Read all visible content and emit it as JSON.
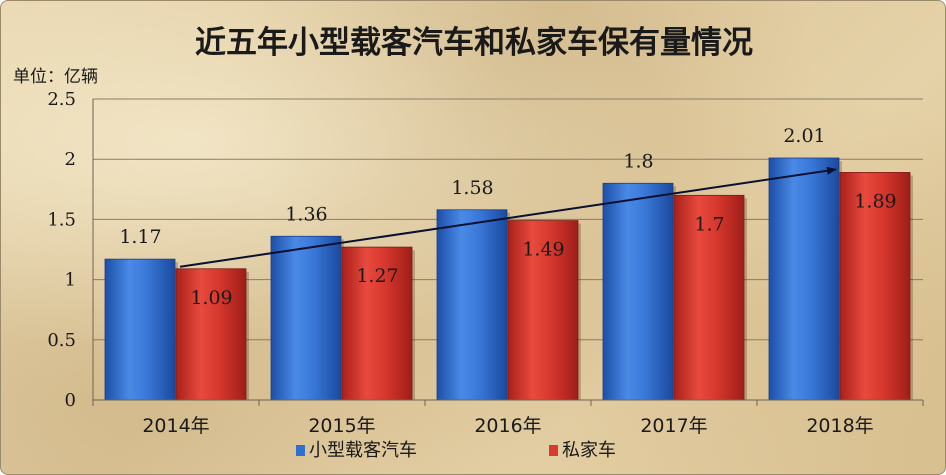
{
  "chart_data": {
    "type": "bar",
    "title": "近五年小型载客汽车和私家车保有量情况",
    "unit_label": "单位：亿辆",
    "categories": [
      "2014年",
      "2015年",
      "2016年",
      "2017年",
      "2018年"
    ],
    "series": [
      {
        "name": "小型载客汽车",
        "values": [
          1.17,
          1.36,
          1.58,
          1.8,
          2.01
        ],
        "labels": [
          "1.17",
          "1.36",
          "1.58",
          "1.8",
          "2.01"
        ],
        "color": "#2e6fd0"
      },
      {
        "name": "私家车",
        "values": [
          1.09,
          1.27,
          1.49,
          1.7,
          1.89
        ],
        "labels": [
          "1.09",
          "1.27",
          "1.49",
          "1.7",
          "1.89"
        ],
        "color": "#d83a30"
      }
    ],
    "y_ticks": [
      "0",
      "0.5",
      "1",
      "1.5",
      "2",
      "2.5"
    ],
    "ylim": [
      0,
      2.5
    ],
    "grid": true,
    "legend": "bottom",
    "trend_arrow": {
      "from_category": "2014年",
      "to_category": "2018年",
      "from_value": 1.09,
      "to_value": 1.89
    }
  }
}
